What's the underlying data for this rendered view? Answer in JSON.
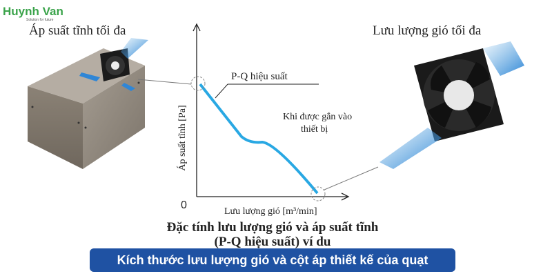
{
  "logo": {
    "name": "Huynh Van",
    "tagline": "Solution for future"
  },
  "left_label": "Áp suất tĩnh tối đa",
  "right_label": "Lưu lượng gió tối đa",
  "curve_label": "P-Q  hiệu suất",
  "note": {
    "line1": "Khi được gắn vào",
    "line2": "thiết bị"
  },
  "axes": {
    "y_label": "Áp suất tĩnh [Pa]",
    "origin": "0",
    "x_label": "Lưu lượng gió [m³/min]"
  },
  "title": {
    "line1": "Đặc tính lưu lượng gió và áp suất tĩnh",
    "line2": "(P-Q hiệu suất) ví du"
  },
  "banner": "Kích thước lưu lượng gió và cột áp thiết kế của quạt"
}
